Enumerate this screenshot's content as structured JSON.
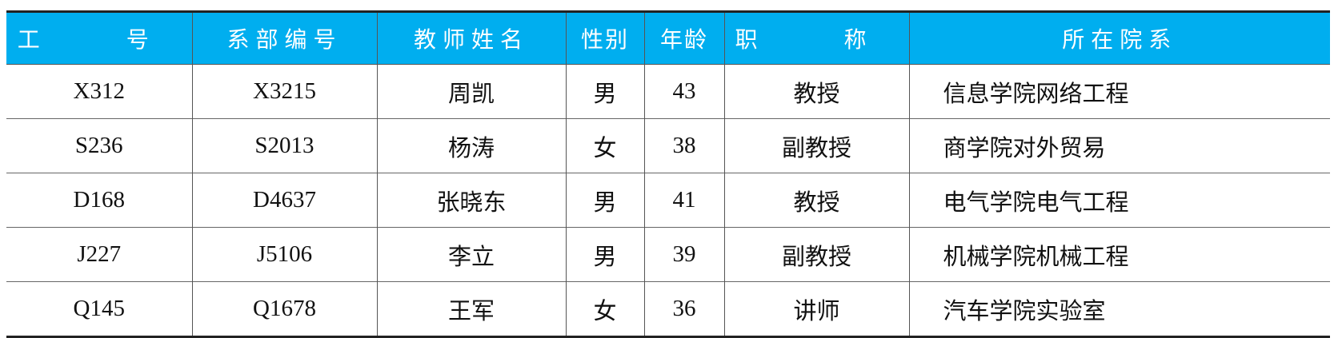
{
  "table": {
    "header_color": "#00aeef",
    "headers": [
      "工　号",
      "系部编号",
      "教师姓名",
      "性别",
      "年龄",
      "职　称",
      "所在院系"
    ],
    "rows": [
      [
        "X312",
        "X3215",
        "周凯",
        "男",
        "43",
        "教授",
        "信息学院网络工程"
      ],
      [
        "S236",
        "S2013",
        "杨涛",
        "女",
        "38",
        "副教授",
        "商学院对外贸易"
      ],
      [
        "D168",
        "D4637",
        "张晓东",
        "男",
        "41",
        "教授",
        "电气学院电气工程"
      ],
      [
        "J227",
        "J5106",
        "李立",
        "男",
        "39",
        "副教授",
        "机械学院机械工程"
      ],
      [
        "Q145",
        "Q1678",
        "王军",
        "女",
        "36",
        "讲师",
        "汽车学院实验室"
      ]
    ]
  }
}
